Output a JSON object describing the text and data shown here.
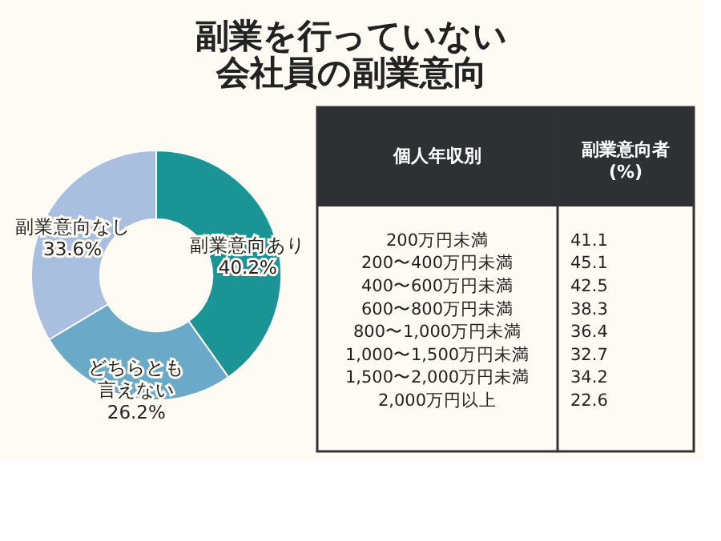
{
  "chart_data": [
    {
      "type": "donut",
      "title": "副業を行っていない会社員の副業意向",
      "categories": [
        "副業意向あり",
        "どちらとも言えない",
        "副業意向なし"
      ],
      "values": [
        40.2,
        26.2,
        33.6
      ],
      "value_labels": [
        "40.2%",
        "26.2%",
        "33.6%"
      ],
      "colors": [
        "#1a9494",
        "#6aaac8",
        "#a9bfe0"
      ],
      "legend": false
    },
    {
      "type": "other",
      "xlabel": "個人年収別",
      "ylabel": "副業意向者\n(%)",
      "categories": [
        "200万円未満",
        "200〜400万円未満",
        "400〜600万円未満",
        "600〜800万円未満",
        "800〜1,000万円未満",
        "1,000〜1,500万円未満",
        "1,500〜2,000万円未満",
        "2,000万円以上"
      ],
      "values": [
        41.1,
        45.1,
        42.5,
        38.3,
        36.4,
        32.7,
        34.2,
        22.6
      ],
      "data_labels": true
    }
  ]
}
